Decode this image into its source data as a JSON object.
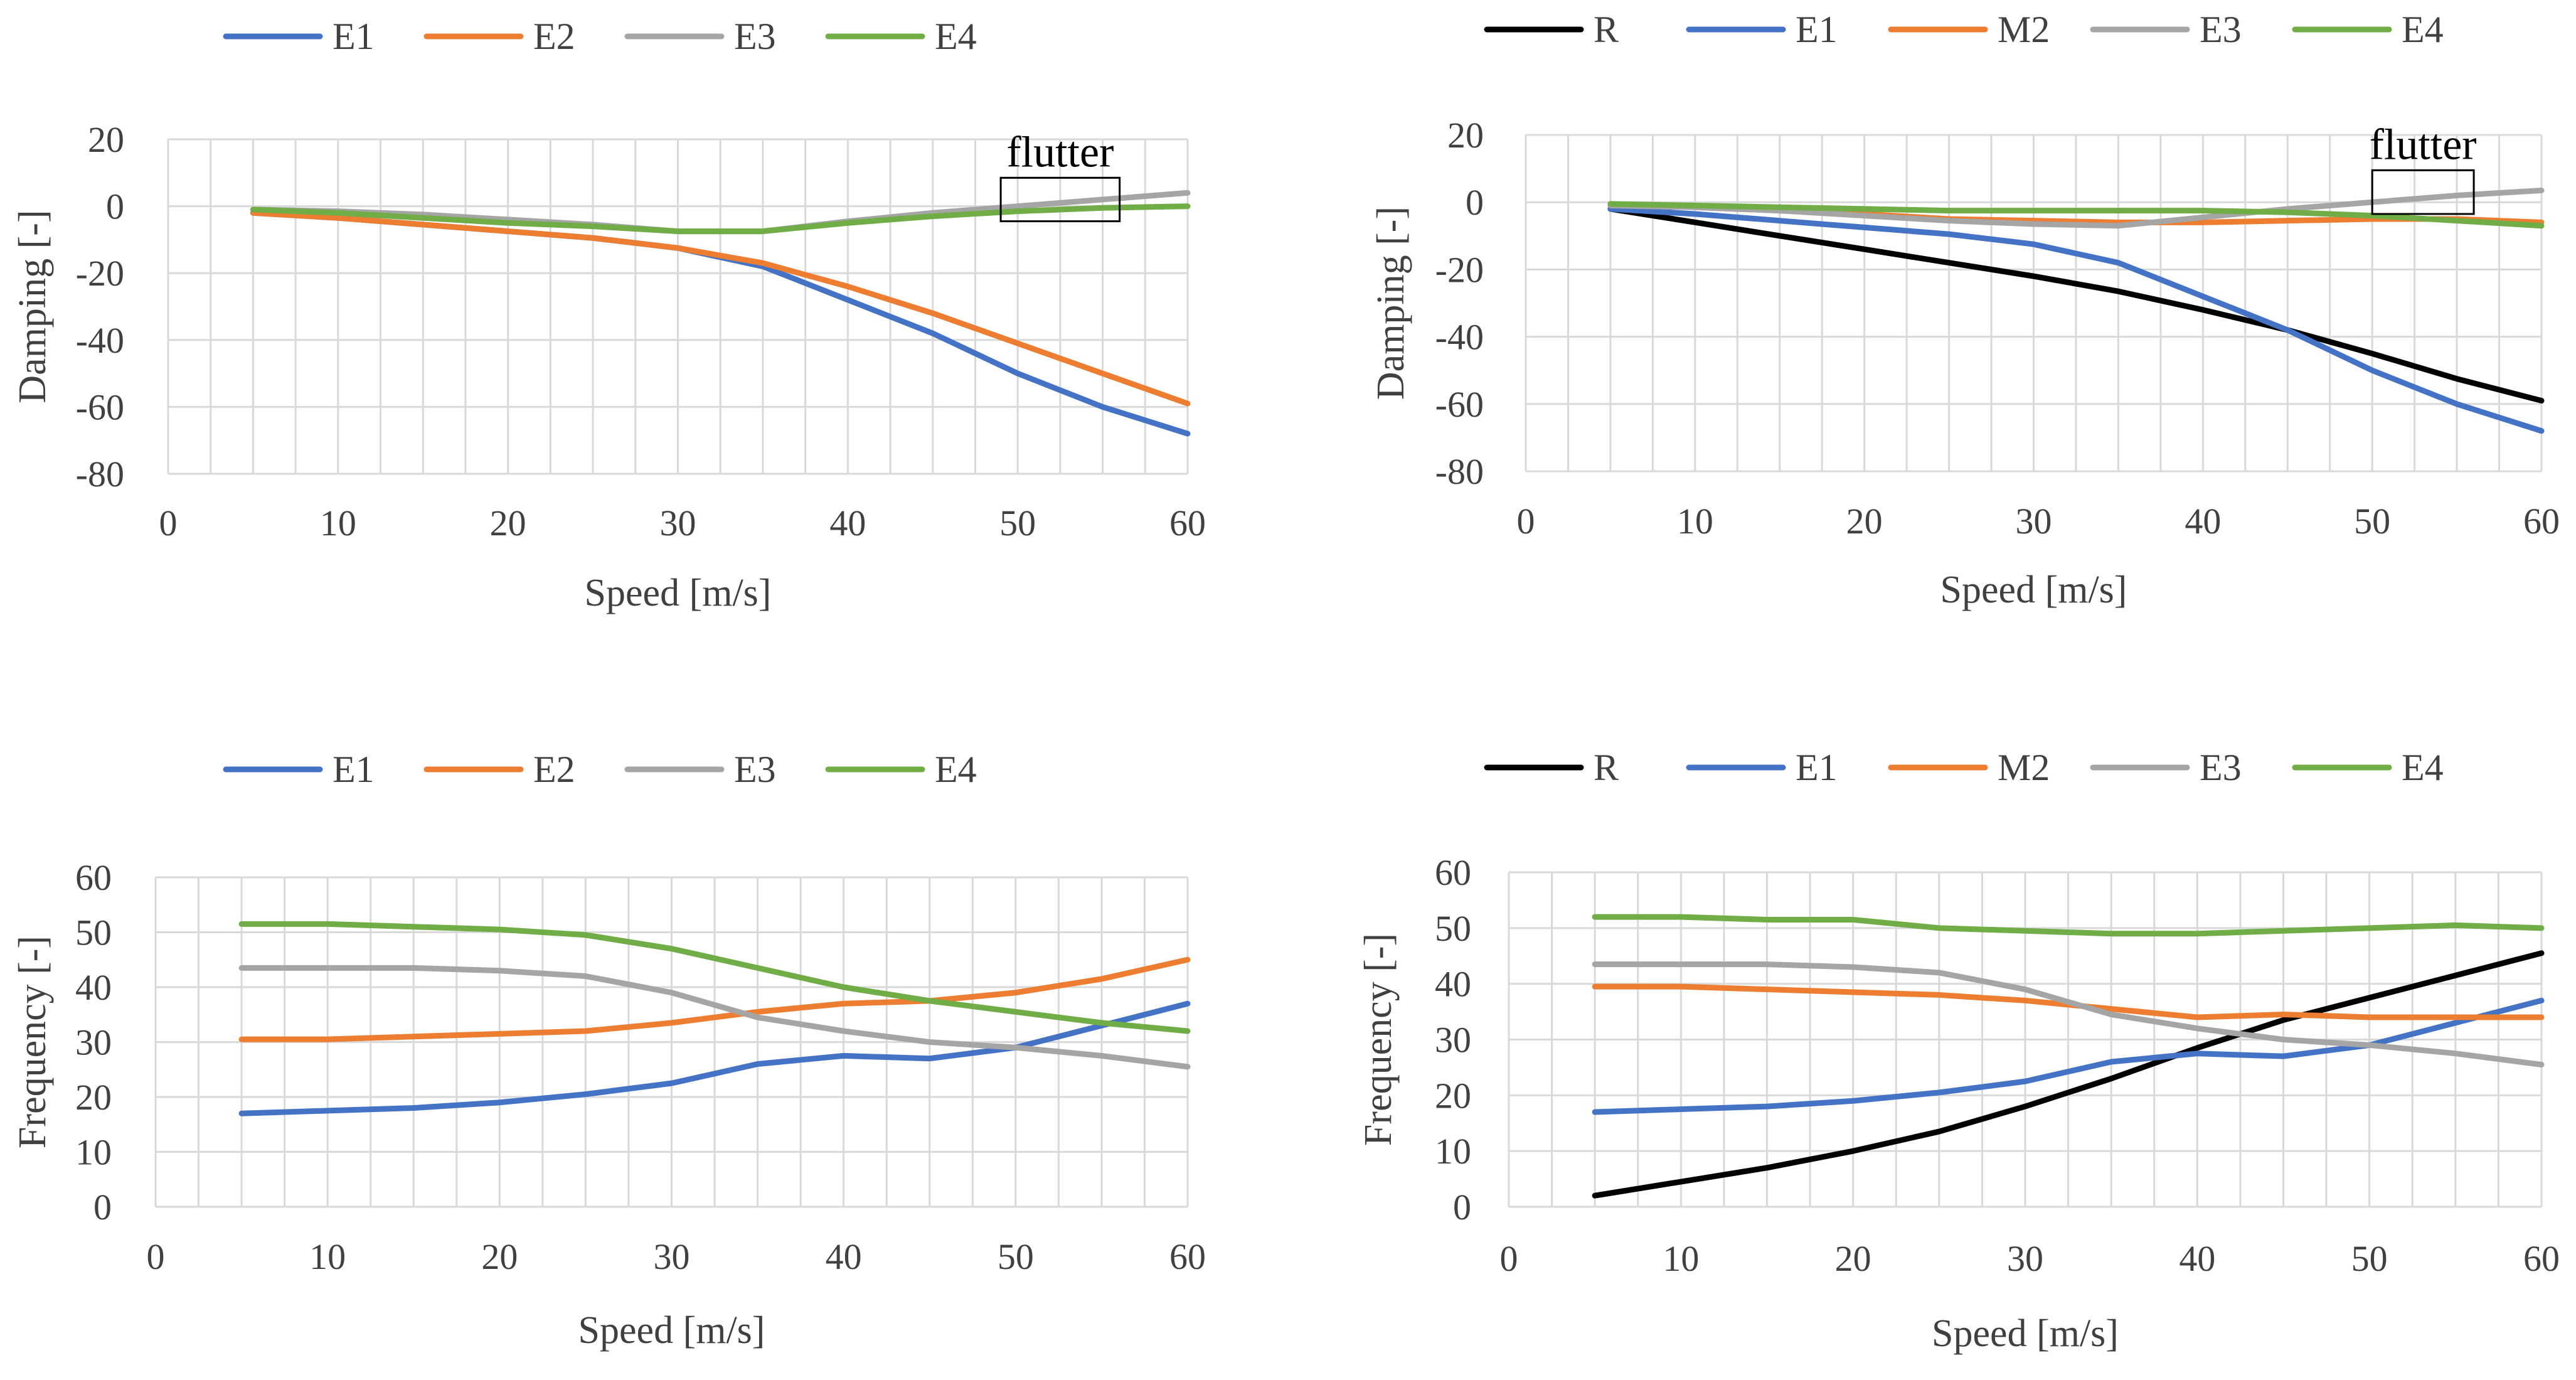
{
  "colors": {
    "R": "#000000",
    "E1": "#4472C4",
    "E2": "#ED7D31",
    "M2": "#ED7D31",
    "E3": "#A5A5A5",
    "E4": "#70AD47",
    "grid": "#D9D9D9",
    "axis_text": "#404040"
  },
  "chart_data": [
    {
      "id": "damping-left",
      "type": "line",
      "title": "",
      "xlabel": "Speed [m/s]",
      "ylabel": "Damping [-]",
      "xlim": [
        0,
        60
      ],
      "ylim": [
        -80,
        20
      ],
      "xticks": [
        0,
        10,
        20,
        30,
        40,
        50,
        60
      ],
      "yticks": [
        20,
        0,
        -20,
        -40,
        -60,
        -80
      ],
      "minor_x_step": 2.5,
      "annotation": {
        "text": "flutter",
        "box_x": [
          49,
          56
        ],
        "box_y": [
          -4.5,
          8.5
        ]
      },
      "legend": [
        "E1",
        "E2",
        "E3",
        "E4"
      ],
      "series": [
        {
          "name": "E1",
          "x": [
            5,
            10,
            15,
            20,
            25,
            30,
            35,
            40,
            45,
            50,
            55,
            60
          ],
          "values": [
            -2,
            -3.5,
            -5.5,
            -7.5,
            -9.5,
            -12.5,
            -18,
            -28,
            -38,
            -50,
            -60,
            -68
          ]
        },
        {
          "name": "E2",
          "x": [
            5,
            10,
            15,
            20,
            25,
            30,
            35,
            40,
            45,
            50,
            55,
            60
          ],
          "values": [
            -2,
            -3.5,
            -5.5,
            -7.5,
            -9.5,
            -12.5,
            -17,
            -24,
            -32,
            -41,
            -50,
            -59
          ]
        },
        {
          "name": "E3",
          "x": [
            5,
            10,
            15,
            20,
            25,
            30,
            35,
            40,
            45,
            50,
            55,
            60
          ],
          "values": [
            -1,
            -1.5,
            -2.5,
            -4,
            -5.5,
            -7.5,
            -7.5,
            -4.5,
            -2,
            0,
            2,
            4
          ]
        },
        {
          "name": "E4",
          "x": [
            5,
            10,
            15,
            20,
            25,
            30,
            35,
            40,
            45,
            50,
            55,
            60
          ],
          "values": [
            -1,
            -2,
            -3.5,
            -5,
            -6,
            -7.5,
            -7.5,
            -5,
            -3,
            -1.5,
            -0.5,
            0
          ]
        }
      ]
    },
    {
      "id": "damping-right",
      "type": "line",
      "title": "",
      "xlabel": "Speed [m/s]",
      "ylabel": "Damping [-]",
      "xlim": [
        0,
        60
      ],
      "ylim": [
        -80,
        20
      ],
      "xticks": [
        0,
        10,
        20,
        30,
        40,
        50,
        60
      ],
      "yticks": [
        20,
        0,
        -20,
        -40,
        -60,
        -80
      ],
      "minor_x_step": 2.5,
      "annotation": {
        "text": "flutter",
        "box_x": [
          50,
          56
        ],
        "box_y": [
          -3.5,
          9.5
        ]
      },
      "legend": [
        "R",
        "E1",
        "M2",
        "E3",
        "E4"
      ],
      "series": [
        {
          "name": "R",
          "x": [
            5,
            10,
            15,
            20,
            25,
            30,
            35,
            40,
            45,
            50,
            55,
            60
          ],
          "values": [
            -2,
            -6,
            -10,
            -14,
            -18,
            -22,
            -26.5,
            -32,
            -38,
            -45,
            -52.5,
            -59
          ]
        },
        {
          "name": "E1",
          "x": [
            5,
            10,
            15,
            20,
            25,
            30,
            35,
            40,
            45,
            50,
            55,
            60
          ],
          "values": [
            -2,
            -3.5,
            -5.5,
            -7.5,
            -9.5,
            -12.5,
            -18,
            -28,
            -38,
            -50,
            -60,
            -68
          ]
        },
        {
          "name": "M2",
          "x": [
            5,
            10,
            15,
            20,
            25,
            30,
            35,
            40,
            45,
            50,
            55,
            60
          ],
          "values": [
            -0.5,
            -1.5,
            -2.5,
            -3.5,
            -5,
            -5.5,
            -6,
            -6,
            -5.5,
            -5,
            -5,
            -6
          ]
        },
        {
          "name": "E3",
          "x": [
            5,
            10,
            15,
            20,
            25,
            30,
            35,
            40,
            45,
            50,
            55,
            60
          ],
          "values": [
            -1,
            -1.5,
            -2.5,
            -4,
            -5.5,
            -6.5,
            -7,
            -4.5,
            -2,
            0,
            2,
            3.5
          ]
        },
        {
          "name": "E4",
          "x": [
            5,
            10,
            15,
            20,
            25,
            30,
            35,
            40,
            45,
            50,
            55,
            60
          ],
          "values": [
            -0.5,
            -1,
            -1.5,
            -2,
            -2.5,
            -2.5,
            -2.5,
            -2.5,
            -3,
            -4,
            -5.5,
            -7
          ]
        }
      ]
    },
    {
      "id": "frequency-left",
      "type": "line",
      "title": "",
      "xlabel": "Speed [m/s]",
      "ylabel": "Frequency [-]",
      "xlim": [
        0,
        60
      ],
      "ylim": [
        0,
        60
      ],
      "xticks": [
        0,
        10,
        20,
        30,
        40,
        50,
        60
      ],
      "yticks": [
        60,
        50,
        40,
        30,
        20,
        10,
        0
      ],
      "minor_x_step": 2.5,
      "legend": [
        "E1",
        "E2",
        "E3",
        "E4"
      ],
      "series": [
        {
          "name": "E1",
          "x": [
            5,
            10,
            15,
            20,
            25,
            30,
            35,
            40,
            45,
            50,
            55,
            60
          ],
          "values": [
            17,
            17.5,
            18,
            19,
            20.5,
            22.5,
            26,
            27.5,
            27,
            29,
            33,
            37
          ]
        },
        {
          "name": "E2",
          "x": [
            5,
            10,
            15,
            20,
            25,
            30,
            35,
            40,
            45,
            50,
            55,
            60
          ],
          "values": [
            30.5,
            30.5,
            31,
            31.5,
            32,
            33.5,
            35.5,
            37,
            37.5,
            39,
            41.5,
            45
          ]
        },
        {
          "name": "E3",
          "x": [
            5,
            10,
            15,
            20,
            25,
            30,
            35,
            40,
            45,
            50,
            55,
            60
          ],
          "values": [
            43.5,
            43.5,
            43.5,
            43,
            42,
            39,
            34.5,
            32,
            30,
            29,
            27.5,
            25.5
          ]
        },
        {
          "name": "E4",
          "x": [
            5,
            10,
            15,
            20,
            25,
            30,
            35,
            40,
            45,
            50,
            55,
            60
          ],
          "values": [
            51.5,
            51.5,
            51,
            50.5,
            49.5,
            47,
            43.5,
            40,
            37.5,
            35.5,
            33.5,
            32
          ]
        }
      ]
    },
    {
      "id": "frequency-right",
      "type": "line",
      "title": "",
      "xlabel": "Speed [m/s]",
      "ylabel": "Frequency [-]",
      "xlim": [
        0,
        60
      ],
      "ylim": [
        0,
        60
      ],
      "xticks": [
        0,
        10,
        20,
        30,
        40,
        50,
        60
      ],
      "yticks": [
        60,
        50,
        40,
        30,
        20,
        10,
        0
      ],
      "minor_x_step": 2.5,
      "legend": [
        "R",
        "E1",
        "M2",
        "E3",
        "E4"
      ],
      "series": [
        {
          "name": "R",
          "x": [
            5,
            10,
            15,
            20,
            25,
            30,
            35,
            40,
            45,
            50,
            55,
            60
          ],
          "values": [
            2,
            4.5,
            7,
            10,
            13.5,
            18,
            23,
            28.5,
            33.5,
            37.5,
            41.5,
            45.5
          ]
        },
        {
          "name": "E1",
          "x": [
            5,
            10,
            15,
            20,
            25,
            30,
            35,
            40,
            45,
            50,
            55,
            60
          ],
          "values": [
            17,
            17.5,
            18,
            19,
            20.5,
            22.5,
            26,
            27.5,
            27,
            29,
            33,
            37
          ]
        },
        {
          "name": "M2",
          "x": [
            5,
            10,
            15,
            20,
            25,
            30,
            35,
            40,
            45,
            50,
            55,
            60
          ],
          "values": [
            39.5,
            39.5,
            39,
            38.5,
            38,
            37,
            35.5,
            34,
            34.5,
            34,
            34,
            34
          ]
        },
        {
          "name": "E3",
          "x": [
            5,
            10,
            15,
            20,
            25,
            30,
            35,
            40,
            45,
            50,
            55,
            60
          ],
          "values": [
            43.5,
            43.5,
            43.5,
            43,
            42,
            39,
            34.5,
            32,
            30,
            29,
            27.5,
            25.5
          ]
        },
        {
          "name": "E4",
          "x": [
            5,
            10,
            15,
            20,
            25,
            30,
            35,
            40,
            45,
            50,
            55,
            60
          ],
          "values": [
            52,
            52,
            51.5,
            51.5,
            50,
            49.5,
            49,
            49,
            49.5,
            50,
            50.5,
            50
          ]
        }
      ]
    }
  ]
}
